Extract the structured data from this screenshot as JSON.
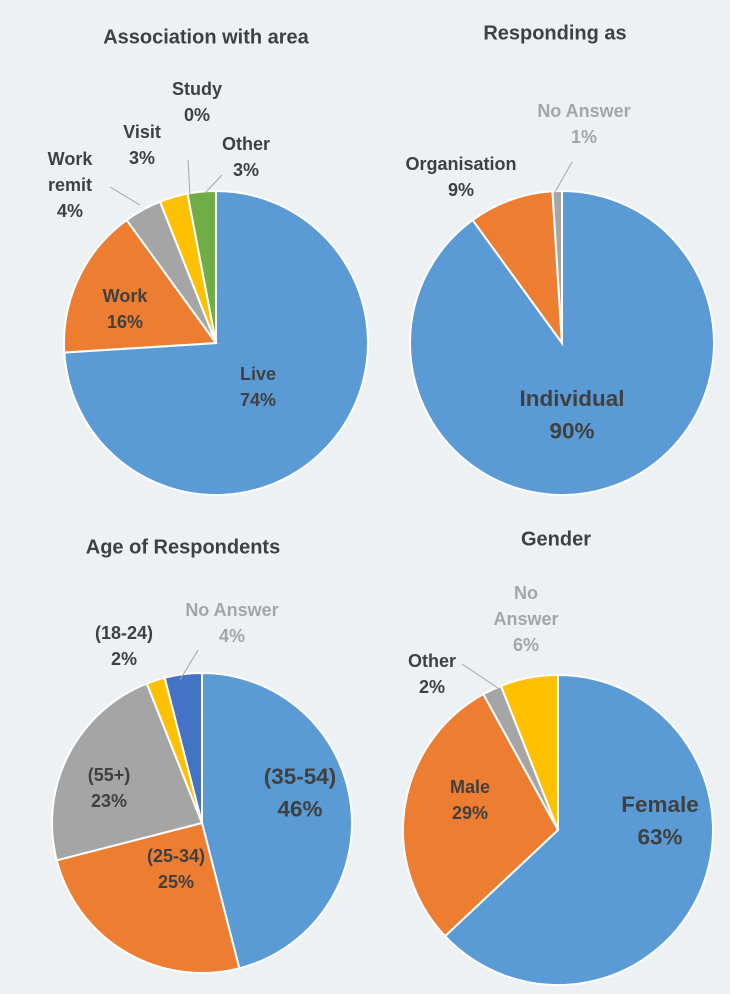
{
  "chart_data": [
    {
      "type": "pie",
      "title": "Association with area",
      "categories": [
        "Live",
        "Work",
        "Work remit",
        "Visit",
        "Study",
        "Other"
      ],
      "values": [
        74,
        16,
        4,
        3,
        0,
        3
      ],
      "value_labels": [
        "74%",
        "16%",
        "4%",
        "3%",
        "0%",
        "3%"
      ],
      "colors": [
        "#5b9bd5",
        "#ed7d31",
        "#a5a5a5",
        "#ffc000",
        "#4472c4",
        "#70ad47"
      ],
      "label_colors": [
        "#404040",
        "#404040",
        "#404040",
        "#404040",
        "#404040",
        "#404040"
      ]
    },
    {
      "type": "pie",
      "title": "Responding as",
      "categories": [
        "Individual",
        "Organisation",
        "No Answer"
      ],
      "values": [
        90,
        9,
        1
      ],
      "value_labels": [
        "90%",
        "9%",
        "1%"
      ],
      "colors": [
        "#5b9bd5",
        "#ed7d31",
        "#a5a5a5"
      ],
      "label_colors": [
        "#404040",
        "#404040",
        "#a5a5a5"
      ]
    },
    {
      "type": "pie",
      "title": "Age of Respondents",
      "categories": [
        "(35-54)",
        "(25-34)",
        "(55+)",
        "(18-24)",
        "No Answer"
      ],
      "values": [
        46,
        25,
        23,
        2,
        4
      ],
      "value_labels": [
        "46%",
        "25%",
        "23%",
        "2%",
        "4%"
      ],
      "colors": [
        "#5b9bd5",
        "#ed7d31",
        "#a5a5a5",
        "#ffc000",
        "#4472c4"
      ],
      "label_colors": [
        "#404040",
        "#404040",
        "#404040",
        "#404040",
        "#a5a5a5"
      ]
    },
    {
      "type": "pie",
      "title": "Gender",
      "categories": [
        "Female",
        "Male",
        "Other",
        "No Answer"
      ],
      "values": [
        63,
        29,
        2,
        6
      ],
      "value_labels": [
        "63%",
        "29%",
        "2%",
        "6%"
      ],
      "colors": [
        "#5b9bd5",
        "#ed7d31",
        "#a5a5a5",
        "#ffc000"
      ],
      "label_colors": [
        "#404040",
        "#404040",
        "#404040",
        "#a5a5a5"
      ]
    }
  ]
}
